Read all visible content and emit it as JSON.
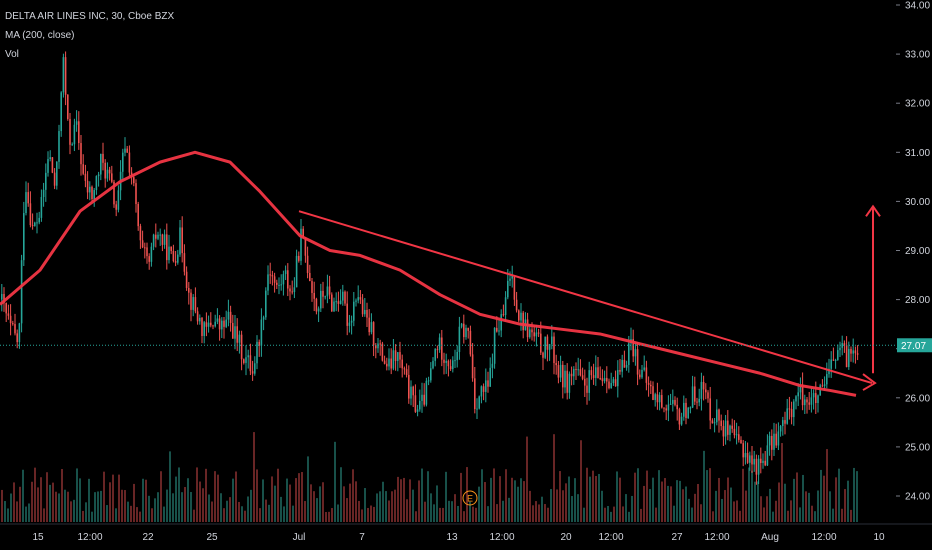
{
  "header": {
    "symbol_line": "DELTA AIR LINES INC, 30, Cboe BZX",
    "ma_line": "MA (200, close)",
    "vol_line": "Vol"
  },
  "last_price_label": "27.07",
  "event_marker": "E",
  "colors": {
    "background": "#000000",
    "up": "#26a69a",
    "down": "#ef5350",
    "ma": "#f23645",
    "trend": "#f23645",
    "last_price": "#26a69a",
    "text": "#d1d4dc"
  },
  "chart_data": {
    "type": "candlestick",
    "title": "DELTA AIR LINES INC, 30, Cboe BZX",
    "y_axis_side": "right",
    "ylim": [
      23.6,
      34.0
    ],
    "yticks": [
      "24.00",
      "25.00",
      "26.00",
      "27.00",
      "28.00",
      "29.00",
      "30.00",
      "31.00",
      "32.00",
      "33.00",
      "34.00"
    ],
    "xticks": [
      "15",
      "12:00",
      "22",
      "25",
      "Jul",
      "7",
      "13",
      "12:00",
      "20",
      "12:00",
      "27",
      "12:00",
      "Aug",
      "12:00",
      "10"
    ],
    "last_price": 27.07,
    "price_path": [
      [
        0,
        28.0
      ],
      [
        10,
        27.4
      ],
      [
        18,
        27.1
      ],
      [
        24,
        30.5
      ],
      [
        32,
        29.4
      ],
      [
        40,
        29.8
      ],
      [
        48,
        31.0
      ],
      [
        55,
        30.2
      ],
      [
        62,
        33.0
      ],
      [
        68,
        31.2
      ],
      [
        76,
        31.5
      ],
      [
        84,
        30.3
      ],
      [
        92,
        30.1
      ],
      [
        100,
        30.8
      ],
      [
        108,
        30.5
      ],
      [
        116,
        29.8
      ],
      [
        124,
        31.2
      ],
      [
        132,
        30.4
      ],
      [
        140,
        29.0
      ],
      [
        148,
        28.7
      ],
      [
        156,
        29.4
      ],
      [
        164,
        29.1
      ],
      [
        172,
        28.8
      ],
      [
        180,
        29.3
      ],
      [
        188,
        28.1
      ],
      [
        196,
        27.7
      ],
      [
        204,
        27.3
      ],
      [
        212,
        27.6
      ],
      [
        220,
        27.4
      ],
      [
        228,
        27.6
      ],
      [
        236,
        27.2
      ],
      [
        244,
        26.8
      ],
      [
        252,
        26.6
      ],
      [
        260,
        27.4
      ],
      [
        268,
        28.7
      ],
      [
        276,
        28.2
      ],
      [
        284,
        28.5
      ],
      [
        292,
        28.1
      ],
      [
        300,
        29.3
      ],
      [
        308,
        28.6
      ],
      [
        316,
        27.8
      ],
      [
        324,
        28.2
      ],
      [
        332,
        27.9
      ],
      [
        340,
        28.1
      ],
      [
        348,
        27.5
      ],
      [
        356,
        28.2
      ],
      [
        364,
        27.6
      ],
      [
        372,
        27.3
      ],
      [
        380,
        26.9
      ],
      [
        388,
        26.6
      ],
      [
        396,
        26.9
      ],
      [
        404,
        26.4
      ],
      [
        412,
        25.9
      ],
      [
        420,
        25.8
      ],
      [
        428,
        26.3
      ],
      [
        436,
        27.1
      ],
      [
        444,
        26.9
      ],
      [
        452,
        26.6
      ],
      [
        460,
        27.4
      ],
      [
        468,
        27.3
      ],
      [
        474,
        25.9
      ],
      [
        480,
        26.1
      ],
      [
        488,
        26.2
      ],
      [
        494,
        27.3
      ],
      [
        502,
        27.6
      ],
      [
        510,
        28.6
      ],
      [
        518,
        27.7
      ],
      [
        526,
        27.4
      ],
      [
        534,
        27.2
      ],
      [
        542,
        27.0
      ],
      [
        550,
        27.1
      ],
      [
        558,
        26.5
      ],
      [
        566,
        26.3
      ],
      [
        574,
        26.6
      ],
      [
        582,
        26.2
      ],
      [
        590,
        26.4
      ],
      [
        598,
        26.4
      ],
      [
        606,
        26.5
      ],
      [
        614,
        26.2
      ],
      [
        622,
        26.6
      ],
      [
        630,
        27.2
      ],
      [
        638,
        26.6
      ],
      [
        646,
        26.3
      ],
      [
        654,
        26.0
      ],
      [
        662,
        25.9
      ],
      [
        670,
        25.8
      ],
      [
        678,
        25.6
      ],
      [
        686,
        25.8
      ],
      [
        694,
        26.1
      ],
      [
        702,
        26.2
      ],
      [
        710,
        25.7
      ],
      [
        718,
        25.6
      ],
      [
        726,
        25.3
      ],
      [
        734,
        25.1
      ],
      [
        742,
        25.0
      ],
      [
        750,
        24.7
      ],
      [
        758,
        24.6
      ],
      [
        766,
        24.9
      ],
      [
        774,
        25.2
      ],
      [
        782,
        25.4
      ],
      [
        790,
        25.8
      ],
      [
        798,
        26.1
      ],
      [
        806,
        26.0
      ],
      [
        814,
        25.9
      ],
      [
        822,
        26.1
      ],
      [
        830,
        26.6
      ],
      [
        838,
        27.0
      ],
      [
        846,
        26.8
      ],
      [
        854,
        27.1
      ]
    ],
    "ma_200": [
      [
        0,
        27.9
      ],
      [
        40,
        28.6
      ],
      [
        80,
        29.8
      ],
      [
        120,
        30.4
      ],
      [
        160,
        30.8
      ],
      [
        195,
        31.0
      ],
      [
        230,
        30.8
      ],
      [
        260,
        30.2
      ],
      [
        300,
        29.3
      ],
      [
        330,
        29.0
      ],
      [
        360,
        28.9
      ],
      [
        400,
        28.6
      ],
      [
        440,
        28.1
      ],
      [
        480,
        27.7
      ],
      [
        520,
        27.5
      ],
      [
        560,
        27.4
      ],
      [
        600,
        27.3
      ],
      [
        640,
        27.1
      ],
      [
        680,
        26.9
      ],
      [
        720,
        26.7
      ],
      [
        760,
        26.5
      ],
      [
        800,
        26.25
      ],
      [
        830,
        26.15
      ],
      [
        856,
        26.05
      ]
    ],
    "trend_line": {
      "from": [
        299,
        29.8
      ],
      "to": [
        872,
        26.3
      ]
    },
    "target_arrow": {
      "x": 873,
      "from": 26.5,
      "to": 29.9
    },
    "volume_note": "volume histogram drawn along the bottom of the pane"
  }
}
